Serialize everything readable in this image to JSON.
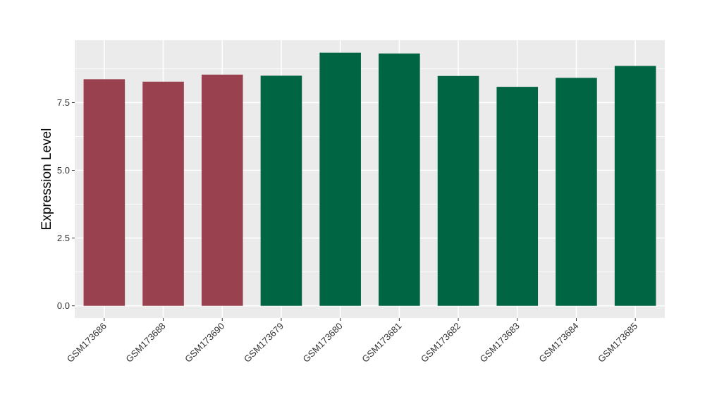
{
  "chart_data": {
    "type": "bar",
    "ylabel": "Expression Level",
    "xlabel": "",
    "categories": [
      "GSM173686",
      "GSM173688",
      "GSM173690",
      "GSM173679",
      "GSM173680",
      "GSM173681",
      "GSM173682",
      "GSM173683",
      "GSM173684",
      "GSM173685"
    ],
    "values": [
      8.36,
      8.27,
      8.53,
      8.49,
      9.34,
      9.31,
      8.48,
      8.08,
      8.41,
      8.85
    ],
    "bar_colors": [
      "#99414f",
      "#99414f",
      "#99414f",
      "#006543",
      "#006543",
      "#006543",
      "#006543",
      "#006543",
      "#006543",
      "#006543"
    ],
    "ylim": [
      -0.45,
      9.8
    ],
    "yticks": [
      0.0,
      2.5,
      5.0,
      7.5
    ],
    "ytick_labels": [
      "0.0",
      "2.5",
      "5.0",
      "7.5"
    ],
    "grid": true,
    "legend": "none",
    "panel_background": "#ebebeb",
    "grid_color": "#ffffff"
  }
}
